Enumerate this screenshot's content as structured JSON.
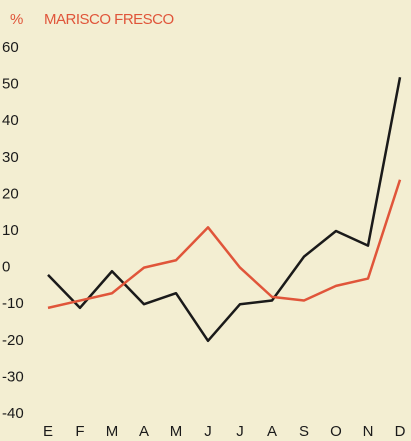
{
  "chart_data": {
    "type": "line",
    "title": "MARISCO FRESCO",
    "y_label": "%",
    "categories": [
      "E",
      "F",
      "M",
      "A",
      "M",
      "J",
      "J",
      "A",
      "S",
      "O",
      "N",
      "D"
    ],
    "series": [
      {
        "color": "#1a1a1a",
        "values": [
          -2,
          -11,
          -1,
          -10,
          -7,
          -20,
          -10,
          -9,
          3,
          10,
          6,
          52
        ]
      },
      {
        "color": "#e0553a",
        "values": [
          -11,
          -9,
          -7,
          0,
          2,
          11,
          0,
          -8,
          -9,
          -5,
          -3,
          24
        ]
      }
    ],
    "ylim": [
      -40,
      60
    ],
    "yticks": [
      -40,
      -30,
      -20,
      -10,
      0,
      10,
      20,
      30,
      40,
      50,
      60
    ],
    "grid": false
  }
}
